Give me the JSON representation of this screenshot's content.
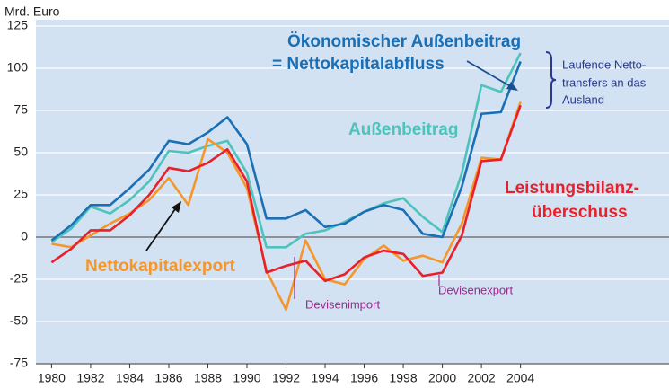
{
  "chart_data": {
    "type": "line",
    "y_label": "Mrd. Euro",
    "x": [
      1980,
      1981,
      1982,
      1983,
      1984,
      1985,
      1986,
      1987,
      1988,
      1989,
      1990,
      1991,
      1992,
      1993,
      1994,
      1995,
      1996,
      1997,
      1998,
      1999,
      2000,
      2001,
      2002,
      2003,
      2004
    ],
    "series": [
      {
        "name": [
          "Außenbeitrag"
        ],
        "color": "#4dc3bb",
        "values": [
          -3,
          5,
          18,
          14,
          22,
          33,
          51,
          50,
          54,
          57,
          38,
          -6,
          -6,
          2,
          4,
          9,
          15,
          20,
          23,
          12,
          3,
          38,
          90,
          86,
          109
        ]
      },
      {
        "name": [
          "Nettokapitalexport"
        ],
        "color": "#f5962a",
        "values": [
          -4,
          -6,
          1,
          8,
          14,
          22,
          35,
          19,
          58,
          50,
          29,
          -20,
          -43,
          -2,
          -25,
          -28,
          -13,
          -5,
          -14,
          -11,
          -15,
          8,
          47,
          46,
          80
        ]
      },
      {
        "name": [
          "Ökonomischer Außenbeitrag",
          "= Nettokapitalabfluss"
        ],
        "color": "#1a6fb5",
        "values": [
          -2,
          7,
          19,
          19,
          29,
          40,
          57,
          55,
          62,
          71,
          55,
          11,
          11,
          16,
          6,
          8,
          15,
          19,
          16,
          2,
          0,
          30,
          73,
          74,
          104
        ]
      },
      {
        "name": [
          "Leistungsbilanz-",
          "überschuss"
        ],
        "color": "#e8202a",
        "values": [
          -15,
          -7,
          4,
          4,
          13,
          25,
          41,
          39,
          44,
          52,
          33,
          -21,
          -17,
          -14,
          -26,
          -22,
          -12,
          -8,
          -10,
          -23,
          -21,
          1,
          45,
          46,
          78
        ]
      }
    ],
    "annotations": [
      {
        "lines": [
          "Devisenimport"
        ],
        "color": "#9b2a8c"
      },
      {
        "lines": [
          "Devisenexport"
        ],
        "color": "#9b2a8c"
      },
      {
        "lines": [
          "Laufende Netto-",
          "transfers an das",
          "Ausland"
        ],
        "color": "#2a3a8e"
      }
    ],
    "xlim": [
      1979.2,
      2011.6
    ],
    "xticks": [
      1980,
      1982,
      1984,
      1986,
      1988,
      1990,
      1992,
      1994,
      1996,
      1998,
      2000,
      2002,
      2004
    ],
    "ylim": [
      -75,
      125
    ],
    "yticks": [
      -75,
      -50,
      -25,
      0,
      25,
      50,
      75,
      100,
      125
    ],
    "grid": true
  }
}
